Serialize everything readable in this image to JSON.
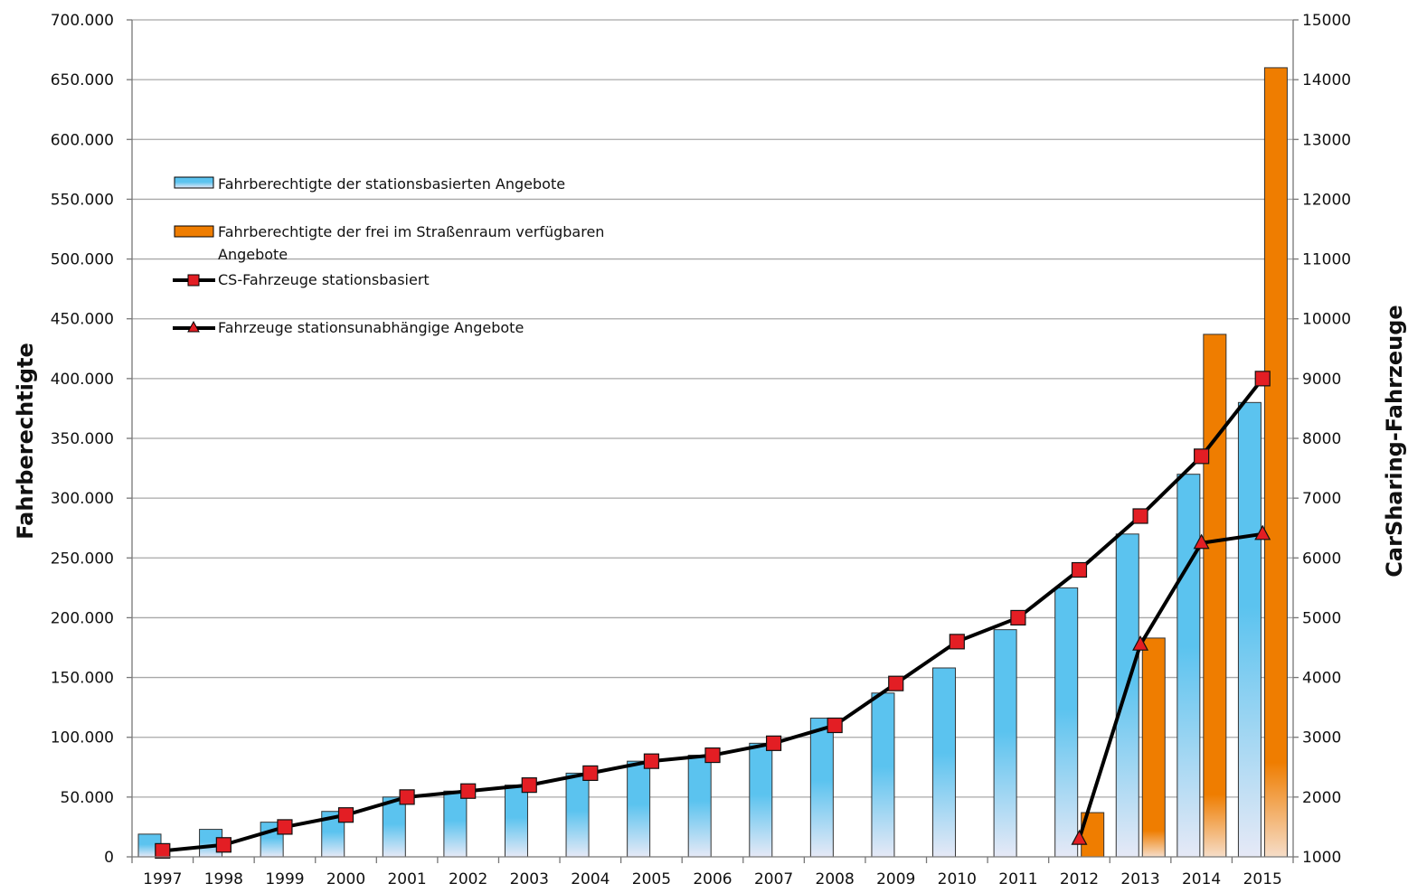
{
  "chart_data": {
    "type": "bar",
    "categories": [
      "1997",
      "1998",
      "1999",
      "2000",
      "2001",
      "2002",
      "2003",
      "2004",
      "2005",
      "2006",
      "2007",
      "2008",
      "2009",
      "2010",
      "2011",
      "2012",
      "2013",
      "2014",
      "2015"
    ],
    "y_left": {
      "label": "Fahrberechtigte",
      "range": [
        0,
        700000
      ],
      "ticks": [
        0,
        50000,
        100000,
        150000,
        200000,
        250000,
        300000,
        350000,
        400000,
        450000,
        500000,
        550000,
        600000,
        650000,
        700000
      ],
      "tick_labels": [
        "0",
        "50.000",
        "100.000",
        "150.000",
        "200.000",
        "250.000",
        "300.000",
        "350.000",
        "400.000",
        "450.000",
        "500.000",
        "550.000",
        "600.000",
        "650.000",
        "700.000"
      ]
    },
    "y_right": {
      "label": "CarSharing-Fahrzeuge",
      "range": [
        1000,
        15000
      ],
      "ticks": [
        1000,
        2000,
        3000,
        4000,
        5000,
        6000,
        7000,
        8000,
        9000,
        10000,
        11000,
        12000,
        13000,
        14000,
        15000
      ],
      "tick_labels": [
        "1000",
        "2000",
        "3000",
        "4000",
        "5000",
        "6000",
        "7000",
        "8000",
        "9000",
        "10000",
        "11000",
        "12000",
        "13000",
        "14000",
        "15000"
      ]
    },
    "series": [
      {
        "name": "Fahrberechtigte der stationsbasierten Angebote",
        "kind": "bar",
        "axis": "left",
        "color": "#5bc3ef",
        "values": [
          19000,
          23000,
          29000,
          38000,
          50000,
          55000,
          60000,
          70000,
          80000,
          85000,
          95000,
          116000,
          137000,
          158000,
          190000,
          225000,
          270000,
          320000,
          380000
        ]
      },
      {
        "name": "Fahrberechtigte der frei im Straßenraum verfügbaren",
        "name_line2": "Angebote",
        "kind": "bar",
        "axis": "left",
        "color": "#ef7d00",
        "values": [
          null,
          null,
          null,
          null,
          null,
          null,
          null,
          null,
          null,
          null,
          null,
          null,
          null,
          null,
          null,
          37000,
          183000,
          437000,
          660000
        ]
      },
      {
        "name": "CS-Fahrzeuge stationsbasiert",
        "kind": "line",
        "marker": "square",
        "axis": "right",
        "color": "#000000",
        "marker_color": "#e31e24",
        "values": [
          1100,
          1200,
          1500,
          1700,
          2000,
          2100,
          2200,
          2400,
          2600,
          2700,
          2900,
          3200,
          3900,
          4600,
          5000,
          5800,
          6700,
          7700,
          9000
        ]
      },
      {
        "name": "Fahrzeuge stationsunabhängige Angebote",
        "kind": "line",
        "marker": "triangle",
        "axis": "right",
        "color": "#000000",
        "marker_color": "#e31e24",
        "values": [
          null,
          null,
          null,
          null,
          null,
          null,
          null,
          null,
          null,
          null,
          null,
          null,
          null,
          null,
          null,
          1300,
          4550,
          6250,
          6400
        ]
      }
    ],
    "grid": "horizontal",
    "legend_position": "upper-left"
  }
}
